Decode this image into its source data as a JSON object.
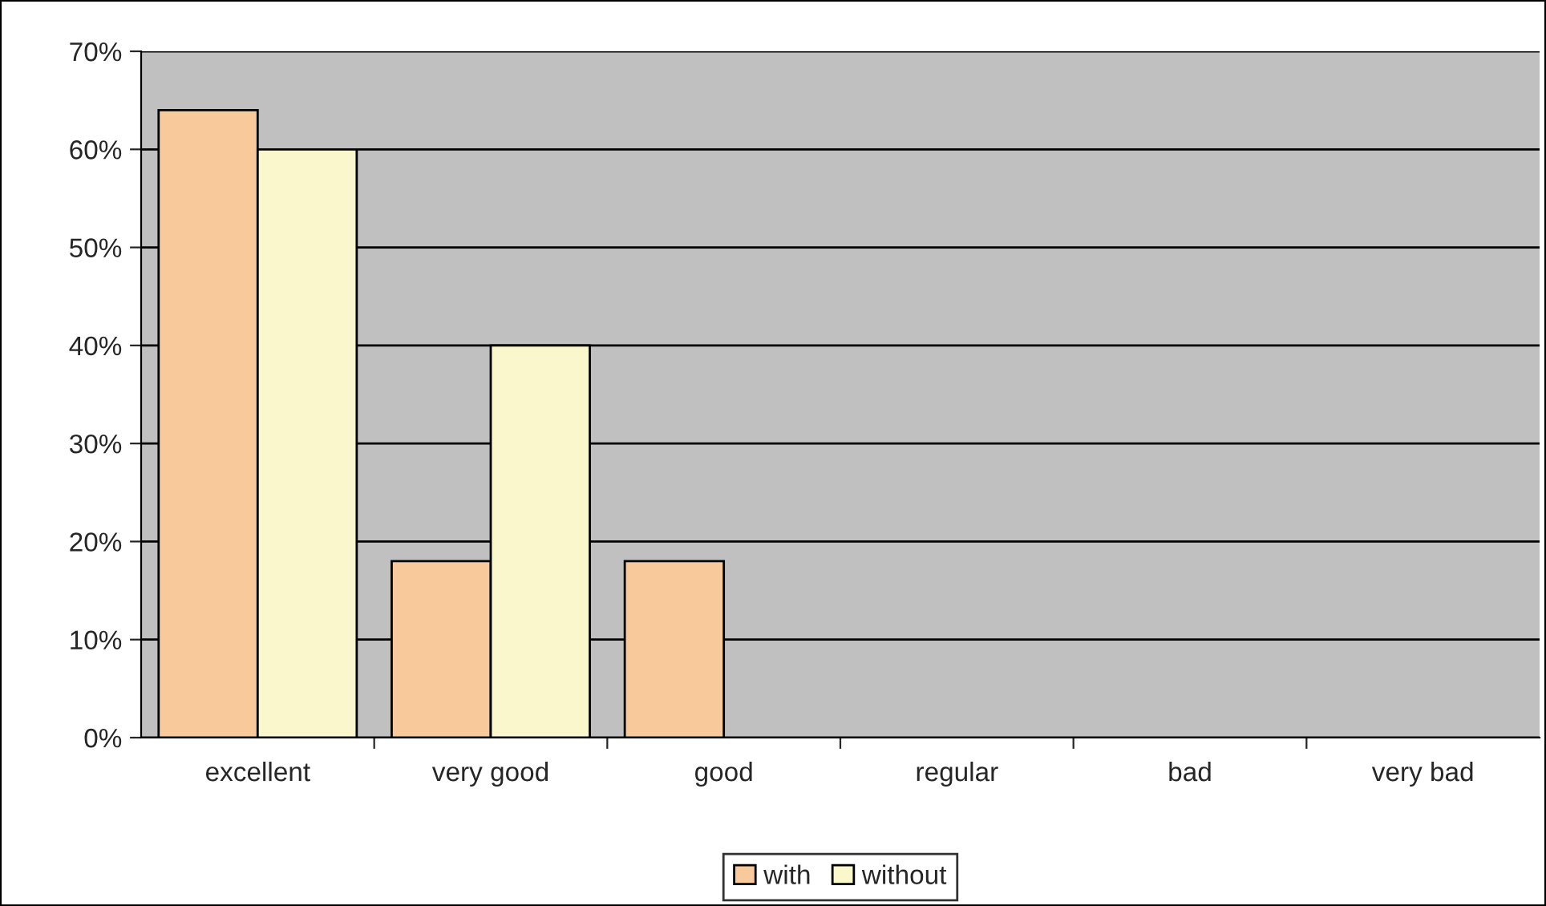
{
  "chart_data": {
    "type": "bar",
    "categories": [
      "excellent",
      "very good",
      "good",
      "regular",
      "bad",
      "very bad"
    ],
    "series": [
      {
        "name": "with",
        "color": "#f8c99a",
        "values": [
          64,
          18,
          18,
          null,
          null,
          null
        ]
      },
      {
        "name": "without",
        "color": "#fbf7cc",
        "values": [
          60,
          40,
          null,
          null,
          null,
          null
        ]
      }
    ],
    "ylim": [
      0,
      70
    ],
    "yticks": [
      {
        "value": 0,
        "label": "0%"
      },
      {
        "value": 10,
        "label": "10%"
      },
      {
        "value": 20,
        "label": "20%"
      },
      {
        "value": 30,
        "label": "30%"
      },
      {
        "value": 40,
        "label": "40%"
      },
      {
        "value": 50,
        "label": "50%"
      },
      {
        "value": 60,
        "label": "60%"
      },
      {
        "value": 70,
        "label": "70%"
      }
    ],
    "grid": "y",
    "legend": "bottom"
  }
}
